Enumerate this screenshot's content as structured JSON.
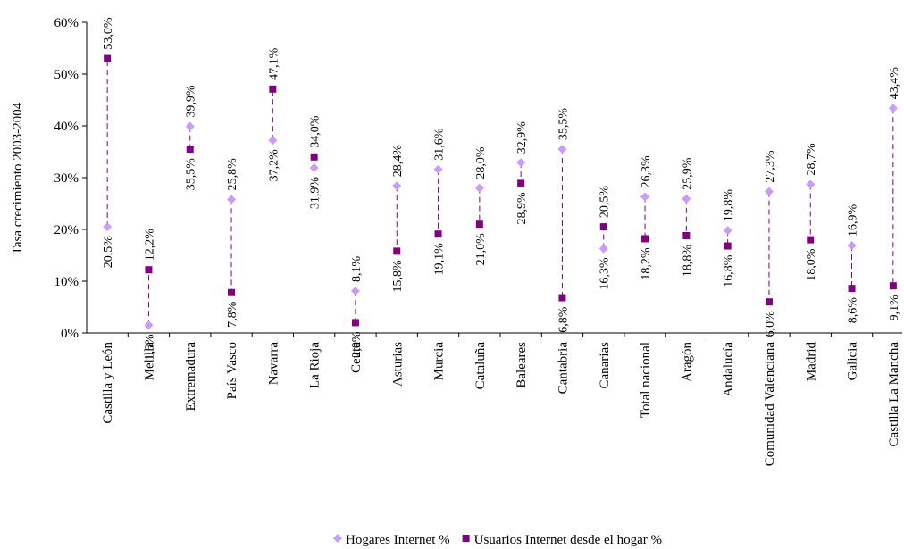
{
  "chart_data": {
    "type": "dot-range",
    "y_label": "Tasa crecimiento 2003-2004",
    "categories": [
      "Castilla y León",
      "Melilla",
      "Extremadura",
      "País Vasco",
      "Navarra",
      "La Rioja",
      "Ceuta",
      "Asturias",
      "Murcia",
      "Cataluña",
      "Baleares",
      "Cantabria",
      "Canarias",
      "Total nacional",
      "Aragón",
      "Andalucía",
      "Comunidad Valenciana",
      "Madrid",
      "Galicia",
      "Castilla La Mancha"
    ],
    "series": [
      {
        "name": "Hogares Internet %",
        "color": "#cc99ff",
        "marker": "diamond",
        "values": [
          20.5,
          1.5,
          39.9,
          25.8,
          37.2,
          31.9,
          8.1,
          28.4,
          31.6,
          28.0,
          32.9,
          35.5,
          16.3,
          26.3,
          25.9,
          19.8,
          27.3,
          28.7,
          16.9,
          43.4
        ],
        "value_labels": [
          "20,5%",
          "1,5%",
          "39,9%",
          "25,8%",
          "37,2%",
          "31,9%",
          "8,1%",
          "28,4%",
          "31,6%",
          "28,0%",
          "32,9%",
          "35,5%",
          "16,3%",
          "26,3%",
          "25,9%",
          "19,8%",
          "27,3%",
          "28,7%",
          "16,9%",
          "43,4%"
        ]
      },
      {
        "name": "Usuarios Internet desde el hogar %",
        "color": "#800080",
        "marker": "square",
        "values": [
          53.0,
          12.2,
          35.5,
          7.8,
          47.1,
          34.0,
          2.0,
          15.8,
          19.1,
          21.0,
          28.9,
          6.8,
          20.5,
          18.2,
          18.8,
          16.8,
          6.0,
          18.0,
          8.6,
          9.1
        ],
        "value_labels": [
          "53,0%",
          "12,2%",
          "35,5%",
          "7,8%",
          "47,1%",
          "34,0%",
          "2,0%",
          "15,8%",
          "19,1%",
          "21,0%",
          "28,9%",
          "6,8%",
          "20,5%",
          "18,2%",
          "18,8%",
          "16,8%",
          "6,0%",
          "18,0%",
          "8,6%",
          "9,1%"
        ]
      }
    ],
    "ylim": [
      0,
      60
    ],
    "yticks": [
      {
        "value": 0,
        "label": "0%"
      },
      {
        "value": 10,
        "label": "10%"
      },
      {
        "value": 20,
        "label": "20%"
      },
      {
        "value": 30,
        "label": "30%"
      },
      {
        "value": 40,
        "label": "40%"
      },
      {
        "value": 50,
        "label": "50%"
      },
      {
        "value": 60,
        "label": "60%"
      }
    ],
    "legend": "bottom"
  }
}
